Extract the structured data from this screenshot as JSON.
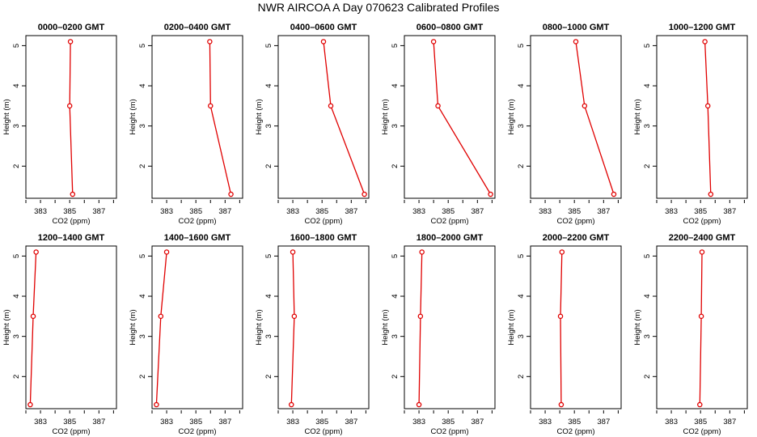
{
  "title": "NWR AIRCOA A  Day 070623  Calibrated Profiles",
  "colors": {
    "series": "#e00000",
    "axis": "#000000",
    "background": "#ffffff"
  },
  "chart_data": {
    "type": "line",
    "grid": false,
    "legend": "none",
    "xlabel": "CO2 (ppm)",
    "ylabel": "Height (m)",
    "xticks": [
      383,
      385,
      387
    ],
    "yticks": [
      2,
      3,
      4,
      5
    ],
    "panels": [
      {
        "title": "0000–0200 GMT",
        "xlim": [
          382,
          388.2
        ],
        "ylim": [
          1.2,
          5.25
        ],
        "points": [
          [
            385.2,
            1.3
          ],
          [
            385.0,
            3.5
          ],
          [
            385.05,
            5.1
          ]
        ]
      },
      {
        "title": "0200–0400 GMT",
        "xlim": [
          382,
          388.2
        ],
        "ylim": [
          1.2,
          5.25
        ],
        "points": [
          [
            387.4,
            1.3
          ],
          [
            386.0,
            3.5
          ],
          [
            385.95,
            5.1
          ]
        ]
      },
      {
        "title": "0400–0600 GMT",
        "xlim": [
          382,
          388.2
        ],
        "ylim": [
          1.2,
          5.25
        ],
        "points": [
          [
            387.9,
            1.3
          ],
          [
            385.6,
            3.5
          ],
          [
            385.1,
            5.1
          ]
        ]
      },
      {
        "title": "0600–0800 GMT",
        "xlim": [
          382,
          388.2
        ],
        "ylim": [
          1.2,
          5.25
        ],
        "points": [
          [
            387.9,
            1.3
          ],
          [
            384.3,
            3.5
          ],
          [
            384.0,
            5.1
          ]
        ]
      },
      {
        "title": "0800–1000 GMT",
        "xlim": [
          382,
          388.2
        ],
        "ylim": [
          1.2,
          5.25
        ],
        "points": [
          [
            387.7,
            1.3
          ],
          [
            385.7,
            3.5
          ],
          [
            385.1,
            5.1
          ]
        ]
      },
      {
        "title": "1000–1200 GMT",
        "xlim": [
          382,
          388.2
        ],
        "ylim": [
          1.2,
          5.25
        ],
        "points": [
          [
            385.7,
            1.3
          ],
          [
            385.5,
            3.5
          ],
          [
            385.3,
            5.1
          ]
        ]
      },
      {
        "title": "1200–1400 GMT",
        "xlim": [
          382,
          388.2
        ],
        "ylim": [
          1.2,
          5.25
        ],
        "points": [
          [
            382.3,
            1.3
          ],
          [
            382.5,
            3.5
          ],
          [
            382.7,
            5.1
          ]
        ]
      },
      {
        "title": "1400–1600 GMT",
        "xlim": [
          382,
          388.2
        ],
        "ylim": [
          1.2,
          5.25
        ],
        "points": [
          [
            382.3,
            1.3
          ],
          [
            382.6,
            3.5
          ],
          [
            383.0,
            5.1
          ]
        ]
      },
      {
        "title": "1600–1800 GMT",
        "xlim": [
          382,
          388.2
        ],
        "ylim": [
          1.2,
          5.25
        ],
        "points": [
          [
            382.9,
            1.3
          ],
          [
            383.1,
            3.5
          ],
          [
            383.0,
            5.1
          ]
        ]
      },
      {
        "title": "1800–2000 GMT",
        "xlim": [
          382,
          388.2
        ],
        "ylim": [
          1.2,
          5.25
        ],
        "points": [
          [
            383.0,
            1.3
          ],
          [
            383.1,
            3.5
          ],
          [
            383.2,
            5.1
          ]
        ]
      },
      {
        "title": "2000–2200 GMT",
        "xlim": [
          382,
          388.2
        ],
        "ylim": [
          1.2,
          5.25
        ],
        "points": [
          [
            384.1,
            1.3
          ],
          [
            384.05,
            3.5
          ],
          [
            384.15,
            5.1
          ]
        ]
      },
      {
        "title": "2200–2400 GMT",
        "xlim": [
          382,
          388.2
        ],
        "ylim": [
          1.2,
          5.25
        ],
        "points": [
          [
            384.95,
            1.3
          ],
          [
            385.05,
            3.5
          ],
          [
            385.1,
            5.1
          ]
        ]
      }
    ]
  }
}
